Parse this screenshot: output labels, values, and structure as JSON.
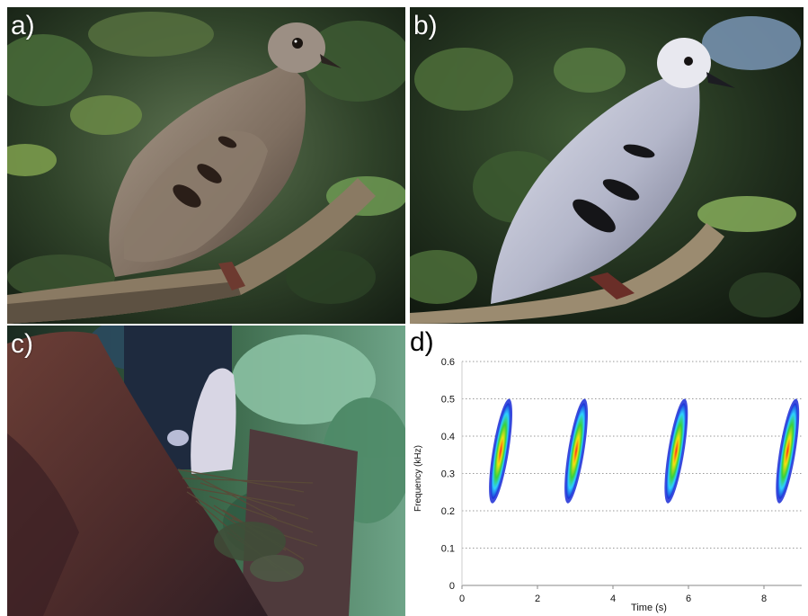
{
  "panels": {
    "a": {
      "label": "a)",
      "subject": "brown-dove-photo"
    },
    "b": {
      "label": "b)",
      "subject": "grey-dove-photo"
    },
    "c": {
      "label": "c)",
      "subject": "dove-on-nest-photo"
    },
    "d": {
      "label": "d)"
    }
  },
  "chart_data": {
    "type": "heatmap",
    "title": "",
    "xlabel": "Time (s)",
    "ylabel": "Frequency (kHz)",
    "xlim": [
      0,
      9
    ],
    "ylim": [
      0,
      0.6
    ],
    "xticks": [
      0,
      2,
      4,
      6,
      8
    ],
    "yticks": [
      0,
      0.1,
      0.2,
      0.3,
      0.4,
      0.5,
      0.6
    ],
    "grid": "horizontal-dotted",
    "notes": [
      {
        "t_start": 0.8,
        "t_end": 1.25,
        "f_low": 0.22,
        "f_high": 0.5
      },
      {
        "t_start": 2.8,
        "t_end": 3.25,
        "f_low": 0.22,
        "f_high": 0.5
      },
      {
        "t_start": 5.45,
        "t_end": 5.9,
        "f_low": 0.22,
        "f_high": 0.5
      },
      {
        "t_start": 8.4,
        "t_end": 8.85,
        "f_low": 0.22,
        "f_high": 0.5
      }
    ],
    "colormap": [
      "#1a2bd6",
      "#2fd0ff",
      "#39d13a",
      "#f2e10f",
      "#ff2a1a"
    ]
  }
}
